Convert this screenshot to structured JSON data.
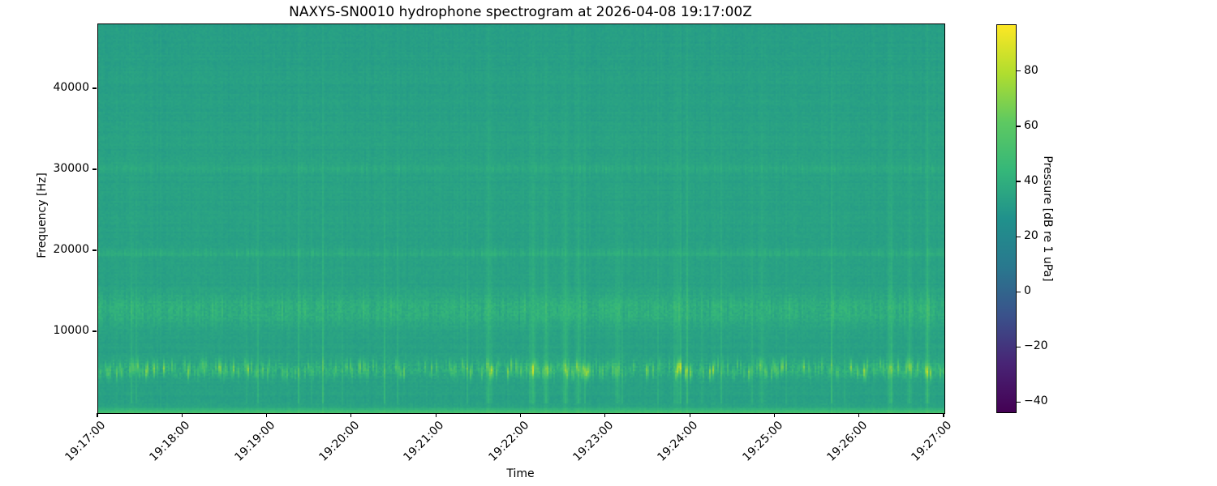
{
  "chart_data": {
    "type": "heatmap",
    "subtype": "spectrogram",
    "title": "NAXYS-SN0010 hydrophone spectrogram at 2026-04-08 19:17:00Z",
    "xlabel": "Time",
    "ylabel": "Frequency [Hz]",
    "x_ticks": [
      "19:17:00",
      "19:18:00",
      "19:19:00",
      "19:20:00",
      "19:21:00",
      "19:22:00",
      "19:23:00",
      "19:24:00",
      "19:25:00",
      "19:26:00",
      "19:27:00"
    ],
    "y_ticks": [
      10000,
      20000,
      30000,
      40000
    ],
    "freq_range_hz": [
      0,
      48000
    ],
    "time_range": [
      "19:17:00",
      "19:27:00"
    ],
    "duration_s": 600,
    "grid": false,
    "background_level_db": 34,
    "colorbar": {
      "label": "Pressure [dB re 1 uPa]",
      "ticks": [
        80,
        60,
        40,
        20,
        0,
        -20,
        -40
      ],
      "vmin": -44,
      "vmax": 97,
      "colormap": "viridis",
      "colormap_stops": [
        [
          0.0,
          "#440154"
        ],
        [
          0.125,
          "#482475"
        ],
        [
          0.25,
          "#3a528b"
        ],
        [
          0.375,
          "#29788e"
        ],
        [
          0.5,
          "#20918c"
        ],
        [
          0.625,
          "#35b779"
        ],
        [
          0.75,
          "#5ec961"
        ],
        [
          0.875,
          "#b0dd2f"
        ],
        [
          1.0,
          "#fde724"
        ]
      ]
    },
    "features": {
      "seed": 7,
      "bands": [
        {
          "name": "5-khz-noise-band",
          "center_hz": 5400,
          "sigma_hz": 600,
          "boost_db": 10,
          "variability_db": 20
        },
        {
          "name": "12-khz-band",
          "center_hz": 12800,
          "sigma_hz": 1300,
          "boost_db": 5,
          "variability_db": 6
        },
        {
          "name": "20-khz-band",
          "center_hz": 19800,
          "sigma_hz": 450,
          "boost_db": 3,
          "variability_db": 4
        },
        {
          "name": "30-khz-band",
          "center_hz": 30100,
          "sigma_hz": 450,
          "boost_db": 2.5,
          "variability_db": 3
        }
      ],
      "low_freq_edge": {
        "cutoff_hz": 900,
        "boost_db": 20
      },
      "transients": {
        "probability": 0.06,
        "min_db": 4,
        "max_db": 14
      },
      "events": [
        {
          "t_s": 276,
          "amp_db": 9
        },
        {
          "t_s": 308,
          "amp_db": 11
        },
        {
          "t_s": 317,
          "amp_db": 10
        },
        {
          "t_s": 331,
          "amp_db": 12
        },
        {
          "t_s": 340,
          "amp_db": 9
        },
        {
          "t_s": 368,
          "amp_db": 8
        },
        {
          "t_s": 410,
          "amp_db": 7
        },
        {
          "t_s": 470,
          "amp_db": 6
        },
        {
          "t_s": 561,
          "amp_db": 9
        },
        {
          "t_s": 575,
          "amp_db": 8
        },
        {
          "t_s": 587,
          "amp_db": 9
        }
      ],
      "speckle_windows": [
        [
          295,
          350
        ],
        [
          535,
          600
        ]
      ],
      "hf_rolloff_db": 1.2,
      "noise": {
        "pixel_db": 1.6,
        "column_db": 1.2,
        "row_db": 1.0
      }
    }
  }
}
